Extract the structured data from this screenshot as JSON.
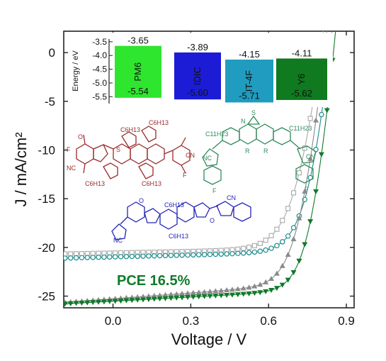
{
  "chart_data": {
    "type": "scatter",
    "xlabel": "Voltage / V",
    "ylabel": "J / mA/cm²",
    "xlim": [
      -0.19,
      0.93
    ],
    "ylim": [
      -26.2,
      2.2
    ],
    "xticks": [
      0.0,
      0.3,
      0.6,
      0.9
    ],
    "xtick_labels": [
      "0.0",
      "0.3",
      "0.6",
      "0.9"
    ],
    "yticks": [
      0,
      -5,
      -10,
      -15,
      -20,
      -25
    ],
    "ytick_labels": [
      "0",
      "-5",
      "-10",
      "-15",
      "-20",
      "-25"
    ],
    "grid": false,
    "annotation": "PCE 16.5%",
    "series": [
      {
        "marker": "open-square",
        "color": "#a8a8a8",
        "jsc": -20.6,
        "voc": 0.8,
        "n": 2.1,
        "rs": 2.5,
        "rsh": 1900
      },
      {
        "marker": "open-circle",
        "color": "#1a8a8a",
        "jsc": -21.0,
        "voc": 0.835,
        "n": 1.9,
        "rs": 2.0,
        "rsh": 1500
      },
      {
        "marker": "filled-triangle-up",
        "color": "#8a8a8a",
        "jsc": -25.4,
        "voc": 0.815,
        "n": 1.7,
        "rs": 2.5,
        "rsh": 500
      },
      {
        "marker": "filled-triangle-down",
        "color": "#0f7a2a",
        "jsc": -25.6,
        "voc": 0.85,
        "n": 1.6,
        "rs": 2.2,
        "rsh": 700
      }
    ],
    "inset": {
      "ylabel": "Energy / eV",
      "yticks": [
        -3.5,
        -4.0,
        -4.5,
        -5.0,
        -5.5
      ],
      "ytick_labels": [
        "-3.5",
        "-4.0",
        "-4.5",
        "-5.0",
        "-5.5"
      ],
      "ylim": [
        -5.75,
        -3.4
      ],
      "materials": [
        {
          "name": "PM6",
          "lumo": -3.65,
          "homo": -5.54,
          "lumo_label": "-3.65",
          "homo_label": "-5.54",
          "color": "#2ee62e"
        },
        {
          "name": "IDIC",
          "lumo": -3.89,
          "homo": -5.6,
          "lumo_label": "-3.89",
          "homo_label": "-5.60",
          "color": "#1c1cd6"
        },
        {
          "name": "IT-4F",
          "lumo": -4.15,
          "homo": -5.71,
          "lumo_label": "-4.15",
          "homo_label": "-5.71",
          "color": "#1f9cbf"
        },
        {
          "name": "Y6",
          "lumo": -4.11,
          "homo": -5.62,
          "lumo_label": "-4.11",
          "homo_label": "-5.62",
          "color": "#0f7a1f"
        }
      ]
    },
    "molecule_labels": {
      "r1": "C6H13",
      "r2": "C6H13",
      "r3": "C6H13",
      "r4": "C6H13",
      "y6_l": "C11H23",
      "y6_r": "C11H23",
      "y6_n1": "R",
      "y6_n2": "R",
      "y6_s": "S",
      "y6_n": "N",
      "y6_f": "F",
      "idic_1": "C6H13",
      "idic_2": "C6H13",
      "nc": "NC",
      "cn": "CN",
      "o": "O",
      "f": "F",
      "s": "S"
    }
  }
}
